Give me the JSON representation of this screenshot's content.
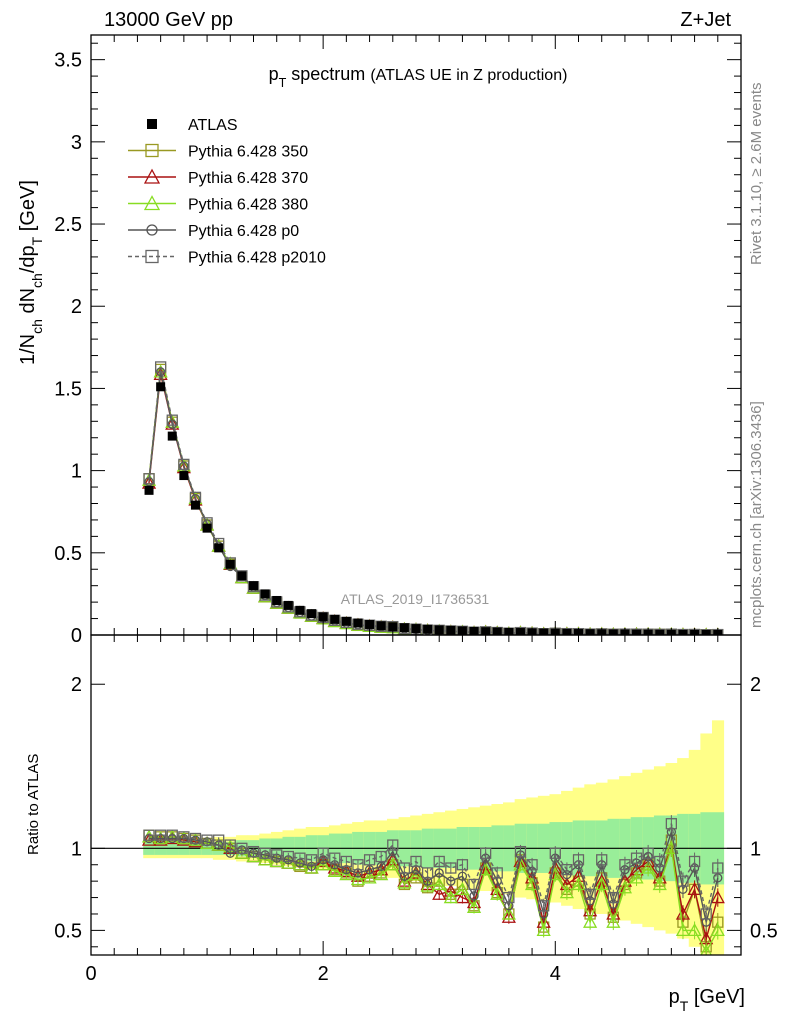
{
  "header": {
    "left": "13000 GeV pp",
    "right": "Z+Jet"
  },
  "side": {
    "rivet": "Rivet 3.1.10, ≥ 2.6M events",
    "mcplots": "mcplots.cern.ch [arXiv:1306.3436]"
  },
  "chart_data": {
    "type": "line",
    "title": "p_T spectrum (ATLAS UE in Z production)",
    "analysis_label": "ATLAS_2019_I1736531",
    "xlabel": "p_T [GeV]",
    "xlim": [
      0,
      5.6
    ],
    "xticks": [
      "0",
      "2",
      "4"
    ],
    "upper": {
      "ylabel": "1/N_ch dN_ch/dp_T [GeV]",
      "ylim": [
        0,
        3.65
      ],
      "yticks": [
        "0",
        "0.5",
        "1",
        "1.5",
        "2",
        "2.5",
        "3",
        "3.5"
      ],
      "x": [
        0.5,
        0.6,
        0.7,
        0.8,
        0.9,
        1.0,
        1.1,
        1.2,
        1.3,
        1.4,
        1.5,
        1.6,
        1.7,
        1.8,
        1.9,
        2.0,
        2.1,
        2.2,
        2.3,
        2.4,
        2.5,
        2.6,
        2.7,
        2.8,
        2.9,
        3.0,
        3.1,
        3.2,
        3.3,
        3.4,
        3.5,
        3.6,
        3.7,
        3.8,
        3.9,
        4.0,
        4.1,
        4.2,
        4.3,
        4.4,
        4.5,
        4.6,
        4.7,
        4.8,
        4.9,
        5.0,
        5.1,
        5.2,
        5.3,
        5.4
      ],
      "atlas": [
        0.88,
        1.51,
        1.21,
        0.97,
        0.79,
        0.65,
        0.53,
        0.43,
        0.36,
        0.3,
        0.25,
        0.21,
        0.18,
        0.15,
        0.13,
        0.11,
        0.095,
        0.083,
        0.073,
        0.064,
        0.056,
        0.05,
        0.044,
        0.039,
        0.035,
        0.031,
        0.028,
        0.025,
        0.022,
        0.02,
        0.018,
        0.016,
        0.015,
        0.013,
        0.012,
        0.011,
        0.0098,
        0.0089,
        0.008,
        0.0073,
        0.0066,
        0.006,
        0.0055,
        0.005,
        0.0046,
        0.0042,
        0.0038,
        0.0035,
        0.0032,
        0.003
      ]
    },
    "lower": {
      "ylabel": "Ratio to ATLAS",
      "ylim": [
        0.35,
        2.3
      ],
      "yticks": [
        "0.5",
        "1",
        "2"
      ],
      "reference": 1,
      "band_inner": [
        0.04,
        0.04,
        0.04,
        0.04,
        0.04,
        0.04,
        0.04,
        0.04,
        0.05,
        0.05,
        0.06,
        0.06,
        0.07,
        0.07,
        0.08,
        0.08,
        0.09,
        0.09,
        0.1,
        0.1,
        0.1,
        0.11,
        0.11,
        0.11,
        0.12,
        0.12,
        0.12,
        0.13,
        0.13,
        0.13,
        0.14,
        0.14,
        0.15,
        0.15,
        0.15,
        0.16,
        0.16,
        0.17,
        0.17,
        0.17,
        0.18,
        0.18,
        0.19,
        0.19,
        0.2,
        0.2,
        0.21,
        0.21,
        0.22,
        0.22
      ],
      "band_outer": [
        0.06,
        0.06,
        0.06,
        0.06,
        0.06,
        0.06,
        0.07,
        0.07,
        0.08,
        0.08,
        0.09,
        0.1,
        0.11,
        0.12,
        0.13,
        0.13,
        0.14,
        0.15,
        0.16,
        0.17,
        0.17,
        0.18,
        0.19,
        0.2,
        0.21,
        0.22,
        0.23,
        0.24,
        0.25,
        0.26,
        0.27,
        0.28,
        0.3,
        0.31,
        0.32,
        0.33,
        0.35,
        0.37,
        0.39,
        0.4,
        0.42,
        0.44,
        0.46,
        0.48,
        0.5,
        0.52,
        0.55,
        0.6,
        0.7,
        0.78
      ],
      "series": [
        {
          "name": "Pythia 6.428 350",
          "color": "#999922",
          "marker": "square-open",
          "dash": "solid",
          "values": [
            1.08,
            1.07,
            1.07,
            1.06,
            1.05,
            1.03,
            1.02,
            1.0,
            0.97,
            0.95,
            0.93,
            0.92,
            0.91,
            0.89,
            0.88,
            0.9,
            0.87,
            0.85,
            0.8,
            0.83,
            0.85,
            0.9,
            0.78,
            0.82,
            0.76,
            0.8,
            0.72,
            0.78,
            0.65,
            0.88,
            0.73,
            0.6,
            0.93,
            0.79,
            0.52,
            0.85,
            0.75,
            0.8,
            0.6,
            0.82,
            0.58,
            0.78,
            0.85,
            0.9,
            0.8,
            1.05,
            0.55,
            0.75,
            0.4,
            0.55
          ]
        },
        {
          "name": "Pythia 6.428 370",
          "color": "#aa1111",
          "marker": "triangle-open",
          "dash": "solid",
          "values": [
            1.05,
            1.05,
            1.06,
            1.05,
            1.04,
            1.03,
            1.02,
            1.0,
            0.97,
            0.95,
            0.93,
            0.92,
            0.91,
            0.9,
            0.88,
            0.92,
            0.88,
            0.86,
            0.83,
            0.85,
            0.87,
            0.93,
            0.8,
            0.85,
            0.78,
            0.72,
            0.74,
            0.7,
            0.67,
            0.9,
            0.75,
            0.58,
            0.92,
            0.82,
            0.55,
            0.88,
            0.78,
            0.83,
            0.62,
            0.8,
            0.6,
            0.8,
            0.87,
            0.92,
            0.82,
            1.0,
            0.6,
            0.75,
            0.45,
            0.7
          ]
        },
        {
          "name": "Pythia 6.428 380",
          "color": "#88dd22",
          "marker": "triangle-open",
          "dash": "solid",
          "values": [
            1.07,
            1.06,
            1.07,
            1.06,
            1.05,
            1.03,
            1.02,
            1.01,
            0.97,
            0.95,
            0.93,
            0.92,
            0.91,
            0.9,
            0.88,
            0.9,
            0.86,
            0.84,
            0.81,
            0.82,
            0.84,
            0.9,
            0.79,
            0.84,
            0.77,
            0.78,
            0.7,
            0.75,
            0.64,
            0.87,
            0.72,
            0.6,
            0.9,
            0.78,
            0.5,
            0.84,
            0.73,
            0.78,
            0.55,
            0.78,
            0.55,
            0.76,
            0.82,
            0.88,
            0.78,
            1.0,
            0.5,
            0.5,
            0.37,
            0.5
          ]
        },
        {
          "name": "Pythia 6.428 p0",
          "color": "#555555",
          "marker": "circle-open",
          "dash": "solid",
          "values": [
            1.06,
            1.06,
            1.06,
            1.06,
            1.05,
            1.04,
            1.02,
            0.97,
            0.99,
            0.97,
            0.96,
            0.94,
            0.93,
            0.91,
            0.89,
            0.93,
            0.9,
            0.87,
            0.85,
            0.87,
            0.89,
            0.98,
            0.83,
            0.87,
            0.8,
            0.85,
            0.8,
            0.83,
            0.71,
            0.94,
            0.8,
            0.65,
            0.96,
            0.86,
            0.6,
            0.94,
            0.84,
            0.9,
            0.68,
            0.9,
            0.66,
            0.87,
            0.91,
            0.95,
            0.88,
            1.1,
            0.75,
            0.88,
            0.55,
            0.82
          ]
        },
        {
          "name": "Pythia 6.428 p2010",
          "color": "#666666",
          "marker": "square-open",
          "dash": "dashed",
          "values": [
            1.08,
            1.08,
            1.08,
            1.07,
            1.06,
            1.05,
            1.05,
            1.02,
            1.0,
            0.98,
            0.97,
            0.96,
            0.95,
            0.94,
            0.93,
            0.97,
            0.94,
            0.92,
            0.9,
            0.93,
            0.95,
            1.02,
            0.88,
            0.92,
            0.85,
            0.92,
            0.88,
            0.9,
            0.78,
            0.97,
            0.85,
            0.7,
            0.98,
            0.9,
            0.65,
            0.97,
            0.87,
            0.93,
            0.72,
            0.93,
            0.7,
            0.9,
            0.94,
            0.97,
            0.92,
            1.15,
            0.8,
            0.92,
            0.6,
            0.88
          ]
        }
      ]
    },
    "legend": {
      "placement": "upper-left",
      "entries": [
        {
          "label": "ATLAS",
          "color": "#000000",
          "marker": "square-filled",
          "dash": "none"
        },
        {
          "label": "Pythia 6.428 350",
          "color": "#999922",
          "marker": "square-open",
          "dash": "solid"
        },
        {
          "label": "Pythia 6.428 370",
          "color": "#aa1111",
          "marker": "triangle-open",
          "dash": "solid"
        },
        {
          "label": "Pythia 6.428 380",
          "color": "#88dd22",
          "marker": "triangle-open",
          "dash": "solid"
        },
        {
          "label": "Pythia 6.428 p0",
          "color": "#555555",
          "marker": "circle-open",
          "dash": "solid"
        },
        {
          "label": "Pythia 6.428 p2010",
          "color": "#666666",
          "marker": "square-open",
          "dash": "dashed"
        }
      ]
    },
    "colors": {
      "band_inner": "#99ee99",
      "band_outer": "#ffff88"
    }
  }
}
